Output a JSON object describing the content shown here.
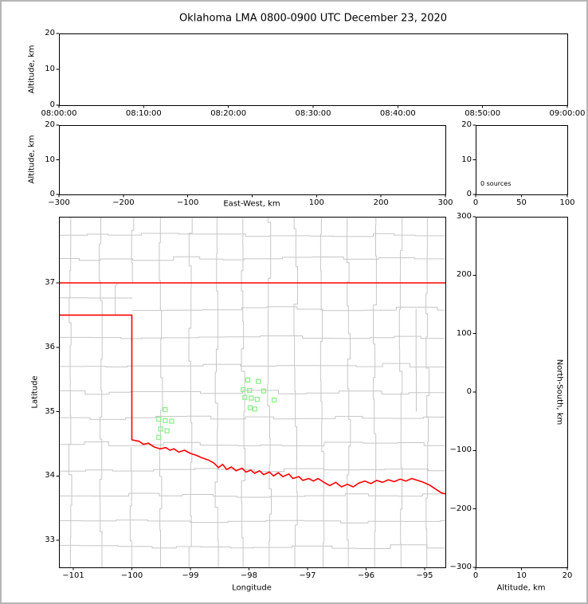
{
  "title": "Oklahoma LMA 0800-0900 UTC December 23, 2020",
  "colors": {
    "background": "#ffffff",
    "figure_border": "#b6b6b6",
    "frame": "#000000",
    "tick": "#000000",
    "state_border": "#ff0000",
    "county_border": "#c6c6c6",
    "source_marker": "#90ee90"
  },
  "chart_data": {
    "type": "scatter",
    "title": "Oklahoma LMA 0800-0900 UTC December 23, 2020",
    "panels": {
      "time_height": {
        "ylabel": "Altitude, km",
        "xlim": [
          0,
          3600
        ],
        "ylim": [
          0,
          20
        ],
        "x_ticks": [
          0,
          600,
          1200,
          1800,
          2400,
          3000,
          3600
        ],
        "x_tick_labels": [
          "08:00:00",
          "08:10:00",
          "08:20:00",
          "08:30:00",
          "08:40:00",
          "08:50:00",
          "09:00:00"
        ],
        "y_ticks": [
          0,
          10,
          20
        ],
        "y_tick_labels": [
          "0",
          "10",
          "20"
        ],
        "points": []
      },
      "ew_height": {
        "ylabel": "Altitude, km",
        "xlabel": "East-West, km",
        "xlim": [
          -300,
          300
        ],
        "ylim": [
          0,
          20
        ],
        "x_ticks": [
          -300,
          -200,
          -100,
          0,
          100,
          200,
          300
        ],
        "x_tick_labels": [
          "−300",
          "−200",
          "−100",
          "",
          "100",
          "200",
          "300"
        ],
        "y_ticks": [
          0,
          10,
          20
        ],
        "y_tick_labels": [
          "0",
          "10",
          "20"
        ],
        "points": []
      },
      "histogram": {
        "annotation": "0 sources",
        "xlim": [
          0,
          100
        ],
        "ylim": [
          0,
          20
        ],
        "x_ticks": [
          0,
          50,
          100
        ],
        "x_tick_labels": [
          "0",
          "50",
          "100"
        ],
        "y_ticks": [
          0,
          10,
          20
        ],
        "y_tick_labels": [
          "0",
          "10",
          "20"
        ],
        "points": []
      },
      "plan_view": {
        "xlabel": "Longitude",
        "ylabel": "Latitude",
        "xlim": [
          -101.245,
          -94.646
        ],
        "ylim": [
          32.579,
          38.028
        ],
        "x_ticks": [
          -101,
          -100,
          -99,
          -98,
          -97,
          -96,
          -95
        ],
        "x_tick_labels": [
          "−101",
          "−100",
          "−99",
          "−98",
          "−97",
          "−96",
          "−95"
        ],
        "y_ticks": [
          33,
          34,
          35,
          36,
          37
        ],
        "y_tick_labels": [
          "33",
          "34",
          "35",
          "36",
          "37"
        ],
        "sources": [
          [
            -98.02,
            35.49
          ],
          [
            -97.84,
            35.47
          ],
          [
            -98.1,
            35.34
          ],
          [
            -97.99,
            35.33
          ],
          [
            -97.75,
            35.32
          ],
          [
            -98.07,
            35.22
          ],
          [
            -97.96,
            35.21
          ],
          [
            -97.86,
            35.19
          ],
          [
            -97.57,
            35.18
          ],
          [
            -97.98,
            35.06
          ],
          [
            -97.9,
            35.04
          ],
          [
            -99.43,
            35.03
          ],
          [
            -99.54,
            34.88
          ],
          [
            -99.43,
            34.86
          ],
          [
            -99.32,
            34.85
          ],
          [
            -99.51,
            34.73
          ],
          [
            -99.4,
            34.7
          ],
          [
            -99.54,
            34.6
          ]
        ],
        "state_borders": [
          [
            [
              -101.25,
              37.0
            ],
            [
              -94.64,
              37.0
            ]
          ],
          [
            [
              -101.25,
              36.5
            ],
            [
              -100.0,
              36.5
            ],
            [
              -100.0,
              34.56
            ],
            [
              -99.88,
              34.54
            ],
            [
              -99.8,
              34.49
            ],
            [
              -99.72,
              34.51
            ],
            [
              -99.62,
              34.45
            ],
            [
              -99.52,
              34.42
            ],
            [
              -99.42,
              34.44
            ],
            [
              -99.35,
              34.4
            ],
            [
              -99.28,
              34.42
            ],
            [
              -99.2,
              34.37
            ],
            [
              -99.1,
              34.4
            ],
            [
              -99.0,
              34.35
            ],
            [
              -98.9,
              34.32
            ],
            [
              -98.8,
              34.28
            ],
            [
              -98.7,
              34.25
            ],
            [
              -98.6,
              34.2
            ],
            [
              -98.52,
              34.13
            ],
            [
              -98.45,
              34.18
            ],
            [
              -98.38,
              34.1
            ],
            [
              -98.3,
              34.14
            ],
            [
              -98.22,
              34.08
            ],
            [
              -98.12,
              34.12
            ],
            [
              -98.05,
              34.06
            ],
            [
              -97.97,
              34.09
            ],
            [
              -97.9,
              34.04
            ],
            [
              -97.82,
              34.08
            ],
            [
              -97.75,
              34.02
            ],
            [
              -97.65,
              34.06
            ],
            [
              -97.58,
              34.0
            ],
            [
              -97.5,
              34.05
            ],
            [
              -97.42,
              33.99
            ],
            [
              -97.32,
              34.03
            ],
            [
              -97.25,
              33.96
            ],
            [
              -97.15,
              33.99
            ],
            [
              -97.08,
              33.93
            ],
            [
              -96.98,
              33.96
            ],
            [
              -96.9,
              33.92
            ],
            [
              -96.82,
              33.96
            ],
            [
              -96.72,
              33.9
            ],
            [
              -96.62,
              33.85
            ],
            [
              -96.52,
              33.9
            ],
            [
              -96.42,
              33.83
            ],
            [
              -96.32,
              33.87
            ],
            [
              -96.22,
              33.83
            ],
            [
              -96.12,
              33.89
            ],
            [
              -96.02,
              33.92
            ],
            [
              -95.92,
              33.88
            ],
            [
              -95.82,
              33.93
            ],
            [
              -95.72,
              33.9
            ],
            [
              -95.62,
              33.94
            ],
            [
              -95.52,
              33.91
            ],
            [
              -95.42,
              33.95
            ],
            [
              -95.32,
              33.92
            ],
            [
              -95.22,
              33.96
            ],
            [
              -95.12,
              33.93
            ],
            [
              -95.02,
              33.9
            ],
            [
              -94.92,
              33.86
            ],
            [
              -94.82,
              33.8
            ],
            [
              -94.72,
              33.74
            ],
            [
              -94.64,
              33.72
            ]
          ]
        ],
        "county_lines": {
          "seed": 11,
          "jitter": 0.032,
          "v_step": 0.42,
          "h_step": 0.5,
          "verticals": [
            {
              "lon": -101.05,
              "from": 32.58,
              "to": 38.03
            },
            {
              "lon": -100.53,
              "from": 32.58,
              "to": 38.03
            },
            {
              "lon": -100.27,
              "from": 36.5,
              "to": 37.0
            },
            {
              "lon": -100.0,
              "from": 37.0,
              "to": 38.03
            },
            {
              "lon": -100.0,
              "from": 32.58,
              "to": 34.45
            },
            {
              "lon": -99.5,
              "from": 32.58,
              "to": 38.03
            },
            {
              "lon": -99.0,
              "from": 32.58,
              "to": 38.03
            },
            {
              "lon": -98.55,
              "from": 32.58,
              "to": 38.03
            },
            {
              "lon": -98.1,
              "from": 32.58,
              "to": 38.03
            },
            {
              "lon": -97.65,
              "from": 32.58,
              "to": 38.03
            },
            {
              "lon": -97.2,
              "from": 32.58,
              "to": 38.03
            },
            {
              "lon": -96.75,
              "from": 32.58,
              "to": 38.03
            },
            {
              "lon": -96.3,
              "from": 32.58,
              "to": 38.03
            },
            {
              "lon": -95.85,
              "from": 32.58,
              "to": 38.03
            },
            {
              "lon": -95.4,
              "from": 32.58,
              "to": 38.03
            },
            {
              "lon": -95.15,
              "from": 35.0,
              "to": 36.6
            },
            {
              "lon": -94.95,
              "from": 32.58,
              "to": 38.03
            }
          ],
          "horizontals": [
            {
              "lat": 37.75,
              "from": -101.25,
              "to": -94.65
            },
            {
              "lat": 37.38,
              "from": -101.25,
              "to": -94.65
            },
            {
              "lat": 36.77,
              "from": -101.25,
              "to": -100.0
            },
            {
              "lat": 36.6,
              "from": -100.0,
              "to": -94.65
            },
            {
              "lat": 36.16,
              "from": -101.25,
              "to": -94.65
            },
            {
              "lat": 35.72,
              "from": -101.25,
              "to": -94.65
            },
            {
              "lat": 35.3,
              "from": -101.25,
              "to": -94.65
            },
            {
              "lat": 34.9,
              "from": -101.25,
              "to": -94.65
            },
            {
              "lat": 34.5,
              "from": -101.25,
              "to": -94.65
            },
            {
              "lat": 34.1,
              "from": -101.25,
              "to": -94.65
            },
            {
              "lat": 33.7,
              "from": -101.25,
              "to": -94.65
            },
            {
              "lat": 33.3,
              "from": -101.25,
              "to": -94.65
            },
            {
              "lat": 32.9,
              "from": -101.25,
              "to": -94.65
            }
          ]
        }
      },
      "ns_height": {
        "xlabel": "Altitude, km",
        "ylabel_right": "North-South, km",
        "xlim": [
          0,
          20
        ],
        "ylim": [
          -300,
          300
        ],
        "x_ticks": [
          0,
          10,
          20
        ],
        "x_tick_labels": [
          "0",
          "10",
          "20"
        ],
        "y_ticks": [
          300,
          200,
          100,
          0,
          -100,
          -200,
          -300
        ],
        "y_tick_labels": [
          "300",
          "200",
          "100",
          "0",
          "−100",
          "−200",
          "−300"
        ],
        "points": []
      }
    }
  }
}
